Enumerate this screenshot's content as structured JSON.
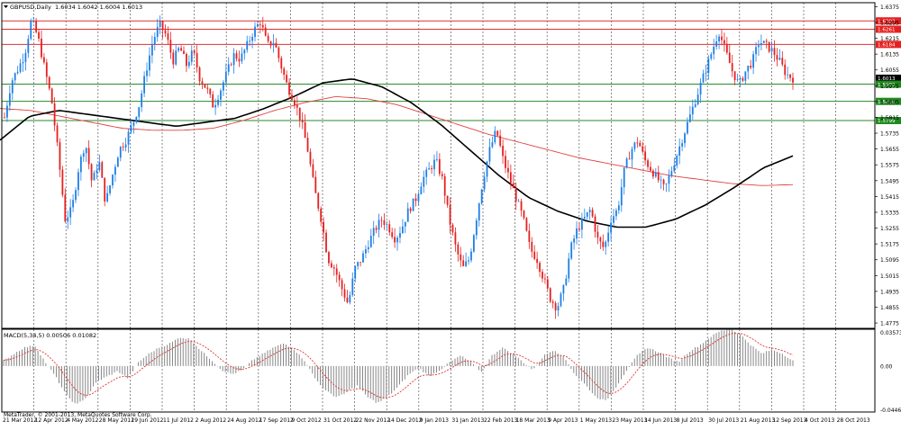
{
  "window": {
    "symbol_label": "GBPUSD,Daily",
    "ohlc_label": "1.6034 1.6042 1.6004 1.6013"
  },
  "indicator": {
    "label": "MACD(5,34,5) 0.00506 0.01082"
  },
  "footer": {
    "copyright": "MetaTrader, © 2001-2013, MetaQuotes Software Corp."
  },
  "colors": {
    "background": "#ffffff",
    "bull_candle": "#1e7fe6",
    "bear_candle": "#e62020",
    "resistance_line": "#e03030",
    "support_line": "#2a8a2a",
    "ma_fast": "#000000",
    "ma_slow": "#e04040",
    "macd_hist": "#7a7a7a",
    "macd_signal": "#e03030",
    "grid": "#5a5a5a"
  },
  "chart_data": [
    {
      "type": "candlestick",
      "title": "GBPUSD,Daily",
      "y_ticks": [
        "1.6375",
        "1.6295",
        "1.6215",
        "1.6135",
        "1.6055",
        "1.5975",
        "1.5895",
        "1.5815",
        "1.5735",
        "1.5655",
        "1.5575",
        "1.5495",
        "1.5415",
        "1.5335",
        "1.5255",
        "1.5175",
        "1.5095",
        "1.5015",
        "1.4935",
        "1.4855",
        "1.4775"
      ],
      "ylim": [
        1.4748,
        1.6395
      ],
      "x_ticks": [
        "21 Mar 2012",
        "12 Apr 2012",
        "4 May 2012",
        "28 May 2012",
        "19 Jun 2012",
        "11 Jul 2012",
        "2 Aug 2012",
        "24 Aug 2012",
        "17 Sep 2012",
        "9 Oct 2012",
        "31 Oct 2012",
        "22 Nov 2012",
        "14 Dec 2012",
        "9 Jan 2013",
        "31 Jan 2013",
        "22 Feb 2013",
        "18 Mar 2013",
        "9 Apr 2013",
        "1 May 2013",
        "23 May 2013",
        "14 Jun 2013",
        "8 Jul 2013",
        "30 Jul 2013",
        "21 Aug 2013",
        "12 Sep 2013",
        "4 Oct 2013",
        "28 Oct 2013"
      ],
      "price_path": [
        [
          1.5815,
          1.5995
        ],
        [
          1.606,
          1.6135
        ],
        [
          1.631,
          1.6215
        ],
        [
          1.6055,
          1.59
        ],
        [
          1.562,
          1.53
        ],
        [
          1.535,
          1.556
        ],
        [
          1.569,
          1.548
        ],
        [
          1.56,
          1.538
        ],
        [
          1.552,
          1.565
        ],
        [
          1.57,
          1.578
        ],
        [
          1.588,
          1.605
        ],
        [
          1.62,
          1.6285
        ],
        [
          1.623,
          1.61
        ],
        [
          1.617,
          1.608
        ],
        [
          1.615,
          1.601
        ],
        [
          1.596,
          1.587
        ],
        [
          1.595,
          1.604
        ],
        [
          1.613,
          1.611
        ],
        [
          1.618,
          1.6255
        ],
        [
          1.63,
          1.618
        ],
        [
          1.62,
          1.608
        ],
        [
          1.597,
          1.59
        ],
        [
          1.58,
          1.565
        ],
        [
          1.545,
          1.53
        ],
        [
          1.51,
          1.505
        ],
        [
          1.4955,
          1.487
        ],
        [
          1.505,
          1.51
        ],
        [
          1.518,
          1.525
        ],
        [
          1.53,
          1.526
        ],
        [
          1.52,
          1.526
        ],
        [
          1.535,
          1.54
        ],
        [
          1.55,
          1.555
        ],
        [
          1.56,
          1.55
        ],
        [
          1.53,
          1.515
        ],
        [
          1.505,
          1.51
        ],
        [
          1.53,
          1.55
        ],
        [
          1.565,
          1.575
        ],
        [
          1.56,
          1.55
        ],
        [
          1.54,
          1.53
        ],
        [
          1.515,
          1.51
        ],
        [
          1.5,
          1.49
        ],
        [
          1.485,
          1.495
        ],
        [
          1.515,
          1.525
        ],
        [
          1.53,
          1.535
        ],
        [
          1.52,
          1.515
        ],
        [
          1.53,
          1.535
        ],
        [
          1.555,
          1.565
        ],
        [
          1.57,
          1.56
        ],
        [
          1.555,
          1.55
        ],
        [
          1.545,
          1.555
        ],
        [
          1.565,
          1.575
        ],
        [
          1.585,
          1.595
        ],
        [
          1.605,
          1.615
        ],
        [
          1.625,
          1.615
        ],
        [
          1.605,
          1.598
        ],
        [
          1.605,
          1.61
        ],
        [
          1.62,
          1.618
        ],
        [
          1.615,
          1.61
        ],
        [
          1.6034,
          1.6013
        ]
      ],
      "ma_fast": [
        1.57,
        1.582,
        1.585,
        1.583,
        1.581,
        1.579,
        1.577,
        1.579,
        1.581,
        1.586,
        1.592,
        1.599,
        1.601,
        1.597,
        1.589,
        1.578,
        1.565,
        1.552,
        1.541,
        1.534,
        1.529,
        1.526,
        1.526,
        1.53,
        1.537,
        1.546,
        1.556,
        1.562
      ],
      "ma_slow": [
        1.586,
        1.585,
        1.582,
        1.579,
        1.576,
        1.575,
        1.575,
        1.576,
        1.58,
        1.585,
        1.589,
        1.592,
        1.591,
        1.588,
        1.583,
        1.578,
        1.573,
        1.569,
        1.565,
        1.561,
        1.558,
        1.555,
        1.552,
        1.55,
        1.548,
        1.547,
        1.5475
      ],
      "horizontal_levels": [
        {
          "label": "1.6303",
          "value": 1.6303,
          "kind": "resistance"
        },
        {
          "label": "1.6261",
          "value": 1.6261,
          "kind": "resistance"
        },
        {
          "label": "1.6184",
          "value": 1.6184,
          "kind": "resistance"
        },
        {
          "label": "1.6013",
          "value": 1.6013,
          "kind": "current"
        },
        {
          "label": "1.5983",
          "value": 1.5983,
          "kind": "support"
        },
        {
          "label": "1.5896",
          "value": 1.5896,
          "kind": "support"
        },
        {
          "label": "1.5799",
          "value": 1.5799,
          "kind": "support"
        }
      ]
    },
    {
      "type": "bar",
      "title": "MACD(5,34,5) 0.00506 0.01082",
      "y_ticks": [
        "0.03573",
        "0.00",
        "-0.04468"
      ],
      "ylim": [
        -0.04468,
        0.03573
      ],
      "hist_path": [
        0.005,
        0.012,
        0.018,
        0.02,
        0.004,
        -0.01,
        -0.028,
        -0.038,
        -0.03,
        -0.015,
        -0.01,
        -0.005,
        -0.012,
        0.004,
        0.012,
        0.018,
        0.022,
        0.028,
        0.026,
        0.015,
        0.006,
        -0.004,
        -0.008,
        -0.004,
        0.006,
        0.012,
        0.018,
        0.022,
        0.016,
        0.005,
        -0.012,
        -0.024,
        -0.03,
        -0.026,
        -0.018,
        -0.03,
        -0.036,
        -0.03,
        -0.02,
        -0.008,
        -0.002,
        -0.01,
        -0.004,
        0.004,
        0.01,
        0.004,
        -0.006,
        0.01,
        0.018,
        0.012,
        0.004,
        -0.004,
        0.01,
        0.016,
        0.008,
        -0.008,
        -0.018,
        -0.03,
        -0.034,
        -0.02,
        -0.004,
        0.01,
        0.018,
        0.014,
        0.008,
        0.004,
        0.014,
        0.02,
        0.028,
        0.034,
        0.036,
        0.03,
        0.02,
        0.012,
        0.016,
        0.012,
        0.005
      ]
    }
  ]
}
